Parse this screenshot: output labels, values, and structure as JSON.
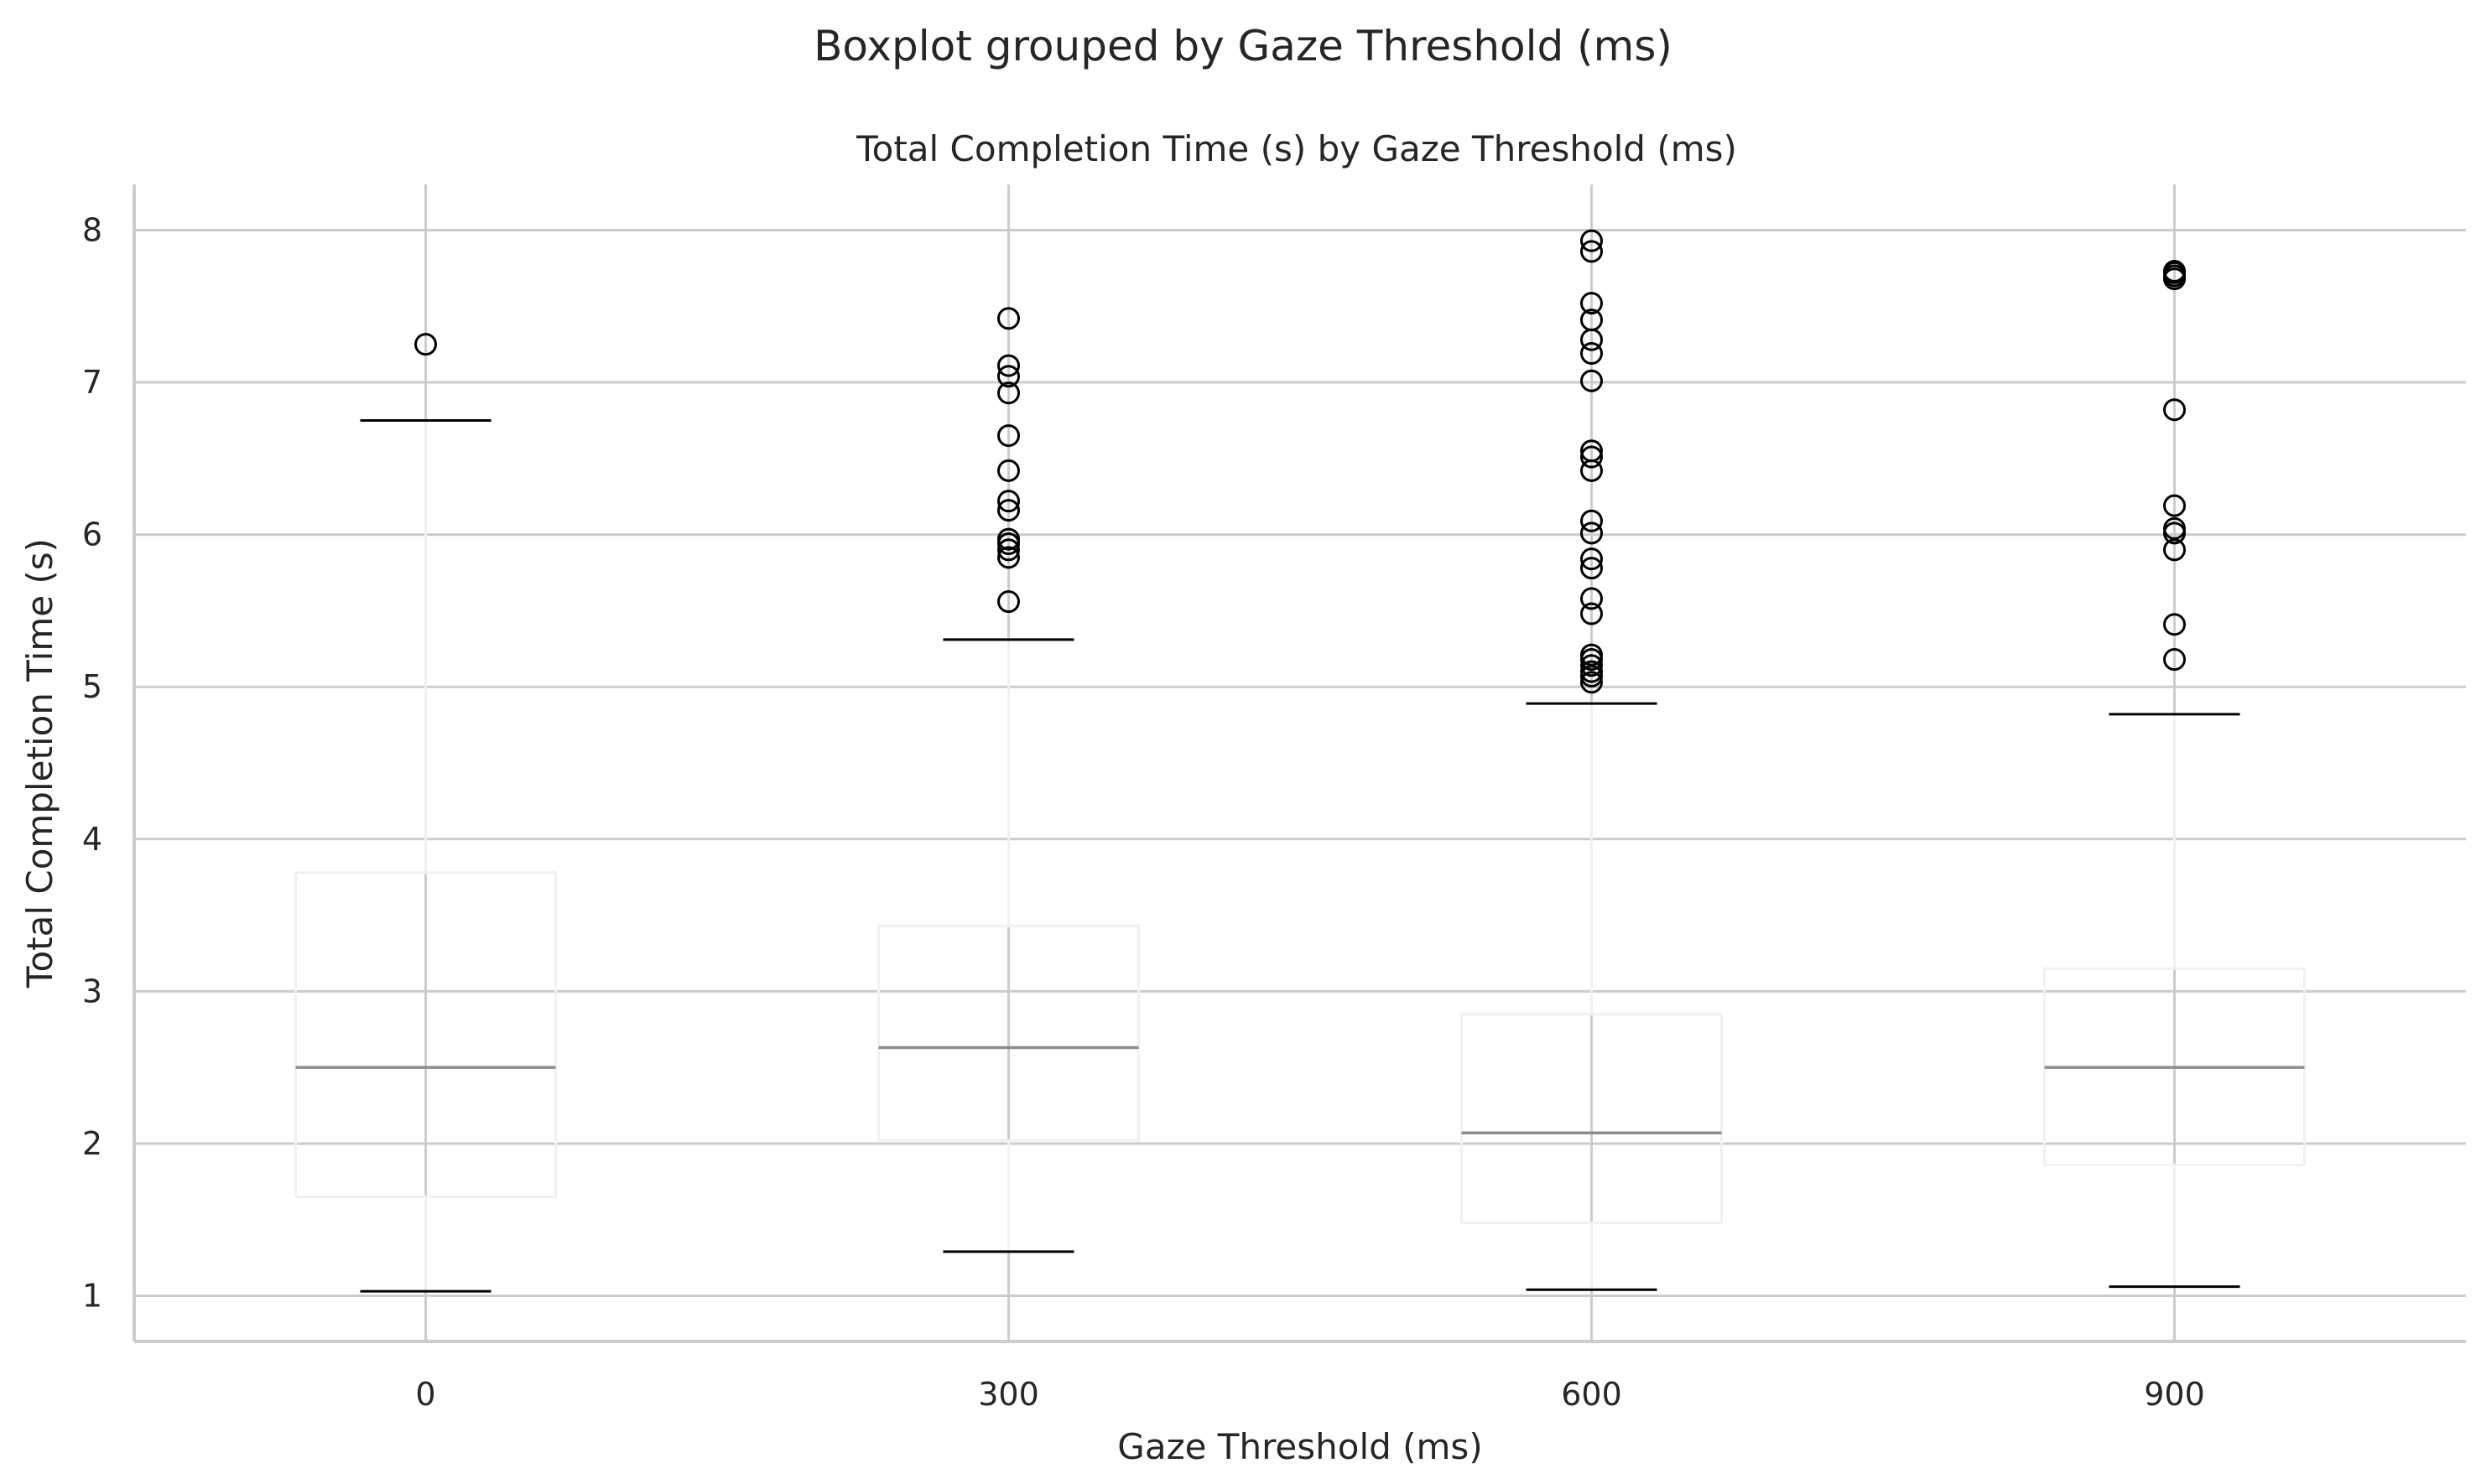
{
  "chart_data": {
    "type": "boxplot",
    "suptitle": "Boxplot grouped by Gaze Threshold (ms)",
    "title": "Total Completion Time (s) by Gaze Threshold (ms)",
    "xlabel": "Gaze Threshold (ms)",
    "ylabel": "Total Completion Time (s)",
    "ylim": [
      0.7,
      8.3
    ],
    "yticks": [
      1,
      2,
      3,
      4,
      5,
      6,
      7,
      8
    ],
    "grid": true,
    "categories": [
      "0",
      "300",
      "600",
      "900"
    ],
    "groups": [
      {
        "category": "0",
        "whisker_low": 1.03,
        "q1": 1.65,
        "median": 2.5,
        "q3": 3.78,
        "whisker_high": 6.75,
        "outliers": [
          7.25
        ]
      },
      {
        "category": "300",
        "whisker_low": 1.29,
        "q1": 2.02,
        "median": 2.63,
        "q3": 3.43,
        "whisker_high": 5.31,
        "outliers": [
          5.56,
          5.85,
          5.9,
          5.94,
          5.97,
          6.16,
          6.22,
          6.42,
          6.65,
          6.93,
          7.04,
          7.11,
          7.42
        ]
      },
      {
        "category": "600",
        "whisker_low": 1.04,
        "q1": 1.48,
        "median": 2.07,
        "q3": 2.85,
        "whisker_high": 4.89,
        "outliers": [
          5.03,
          5.07,
          5.1,
          5.14,
          5.18,
          5.21,
          5.48,
          5.58,
          5.78,
          5.84,
          6.01,
          6.09,
          6.42,
          6.51,
          6.55,
          7.01,
          7.19,
          7.28,
          7.41,
          7.52,
          7.86,
          7.93
        ]
      },
      {
        "category": "900",
        "whisker_low": 1.06,
        "q1": 1.86,
        "median": 2.5,
        "q3": 3.15,
        "whisker_high": 4.82,
        "outliers": [
          5.18,
          5.41,
          5.9,
          6.01,
          6.04,
          6.19,
          6.82,
          7.68,
          7.7,
          7.72,
          7.73
        ]
      }
    ]
  }
}
